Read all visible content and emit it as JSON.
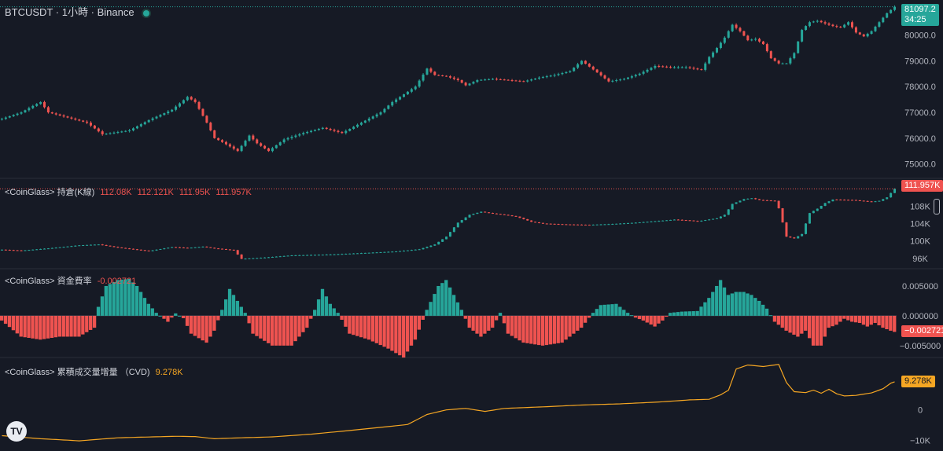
{
  "colors": {
    "background": "#161a25",
    "up": "#26a69a",
    "down": "#ef5350",
    "cvd": "#f5a623",
    "text": "#d1d4dc",
    "divider": "#2a2e39"
  },
  "header": {
    "symbol": "BTCUSDT",
    "separator": "·",
    "interval": "1小時",
    "exchange": "Binance"
  },
  "price_badge": {
    "price": "81097.2",
    "countdown": "34:25"
  },
  "panes": {
    "oi": {
      "title": "<CoinGlass> 持倉(K線)",
      "values": [
        "112.08K",
        "112.121K",
        "111.95K",
        "111.957K"
      ],
      "badge": "111.957K"
    },
    "funding": {
      "title": "<CoinGlass> 資金費率",
      "value": "-0.002721",
      "badge": "−0.002721"
    },
    "cvd": {
      "title": "<CoinGlass> 累積成交量增量 （CVD)",
      "value": "9.278K",
      "badge": "9.278K"
    }
  },
  "logo": "TV",
  "chart_data": [
    {
      "type": "candlestick",
      "pane": "price",
      "ylim": [
        74500,
        81300
      ],
      "yticks": [
        "75000.0",
        "76000.0",
        "77000.0",
        "78000.0",
        "79000.0",
        "80000.0"
      ],
      "ytick_values": [
        75000,
        76000,
        77000,
        78000,
        79000,
        80000
      ],
      "last": 81097.2,
      "anchors": [
        [
          0,
          76750
        ],
        [
          5,
          77000
        ],
        [
          8,
          77250
        ],
        [
          10,
          77400
        ],
        [
          12,
          77000
        ],
        [
          17,
          76800
        ],
        [
          22,
          76600
        ],
        [
          26,
          76150
        ],
        [
          33,
          76300
        ],
        [
          38,
          76700
        ],
        [
          44,
          77100
        ],
        [
          48,
          77600
        ],
        [
          50,
          77400
        ],
        [
          53,
          76600
        ],
        [
          55,
          76000
        ],
        [
          57,
          75850
        ],
        [
          61,
          75500
        ],
        [
          64,
          76100
        ],
        [
          66,
          75800
        ],
        [
          69,
          75500
        ],
        [
          73,
          75950
        ],
        [
          78,
          76200
        ],
        [
          83,
          76400
        ],
        [
          88,
          76200
        ],
        [
          93,
          76600
        ],
        [
          98,
          77000
        ],
        [
          101,
          77400
        ],
        [
          105,
          77800
        ],
        [
          107,
          78000
        ],
        [
          110,
          78700
        ],
        [
          112,
          78450
        ],
        [
          115,
          78400
        ],
        [
          118,
          78250
        ],
        [
          120,
          78050
        ],
        [
          123,
          78250
        ],
        [
          127,
          78300
        ],
        [
          131,
          78250
        ],
        [
          135,
          78200
        ],
        [
          139,
          78350
        ],
        [
          143,
          78450
        ],
        [
          147,
          78600
        ],
        [
          150,
          79000
        ],
        [
          154,
          78550
        ],
        [
          157,
          78200
        ],
        [
          161,
          78300
        ],
        [
          165,
          78500
        ],
        [
          169,
          78800
        ],
        [
          173,
          78750
        ],
        [
          177,
          78750
        ],
        [
          181,
          78650
        ],
        [
          183,
          79150
        ],
        [
          185,
          79500
        ],
        [
          187,
          79900
        ],
        [
          189,
          80400
        ],
        [
          191,
          80150
        ],
        [
          193,
          79800
        ],
        [
          195,
          79850
        ],
        [
          197,
          79650
        ],
        [
          199,
          79100
        ],
        [
          201,
          78900
        ],
        [
          203,
          78900
        ],
        [
          205,
          79300
        ],
        [
          207,
          80200
        ],
        [
          209,
          80500
        ],
        [
          211,
          80550
        ],
        [
          213,
          80450
        ],
        [
          215,
          80350
        ],
        [
          217,
          80300
        ],
        [
          219,
          80500
        ],
        [
          221,
          80100
        ],
        [
          223,
          79950
        ],
        [
          225,
          80150
        ],
        [
          227,
          80500
        ],
        [
          229,
          80850
        ],
        [
          231,
          81100
        ]
      ]
    },
    {
      "type": "candlestick",
      "pane": "open_interest",
      "ylim": [
        94000,
        114000
      ],
      "yticks": [
        "96K",
        "100K",
        "104K",
        "108K"
      ],
      "ytick_values": [
        96000,
        100000,
        104000,
        108000
      ],
      "last": 111957,
      "anchors": [
        [
          0,
          98000
        ],
        [
          5,
          97800
        ],
        [
          12,
          98300
        ],
        [
          20,
          99000
        ],
        [
          25,
          99200
        ],
        [
          30,
          98500
        ],
        [
          38,
          97700
        ],
        [
          44,
          98600
        ],
        [
          48,
          98400
        ],
        [
          52,
          98700
        ],
        [
          55,
          98300
        ],
        [
          60,
          97900
        ],
        [
          62,
          95900
        ],
        [
          68,
          96200
        ],
        [
          75,
          96700
        ],
        [
          85,
          96900
        ],
        [
          95,
          97300
        ],
        [
          102,
          97600
        ],
        [
          108,
          98100
        ],
        [
          112,
          99200
        ],
        [
          115,
          101000
        ],
        [
          118,
          104200
        ],
        [
          121,
          106000
        ],
        [
          124,
          106700
        ],
        [
          127,
          106300
        ],
        [
          130,
          106000
        ],
        [
          133,
          105600
        ],
        [
          137,
          104400
        ],
        [
          140,
          104000
        ],
        [
          146,
          103800
        ],
        [
          152,
          103700
        ],
        [
          158,
          103900
        ],
        [
          164,
          104200
        ],
        [
          170,
          104600
        ],
        [
          174,
          104900
        ],
        [
          178,
          104700
        ],
        [
          180,
          104500
        ],
        [
          182,
          104800
        ],
        [
          185,
          105200
        ],
        [
          187,
          106000
        ],
        [
          189,
          108500
        ],
        [
          192,
          109600
        ],
        [
          194,
          109800
        ],
        [
          196,
          109400
        ],
        [
          198,
          109300
        ],
        [
          200,
          109200
        ],
        [
          201,
          107500
        ],
        [
          203,
          101000
        ],
        [
          205,
          100600
        ],
        [
          207,
          101600
        ],
        [
          209,
          106400
        ],
        [
          211,
          107400
        ],
        [
          213,
          108700
        ],
        [
          215,
          109500
        ],
        [
          220,
          109400
        ],
        [
          225,
          109000
        ],
        [
          227,
          109200
        ],
        [
          229,
          110000
        ],
        [
          231,
          112000
        ]
      ]
    },
    {
      "type": "bar",
      "pane": "funding_rate",
      "ylim": [
        -0.0066,
        0.0075
      ],
      "yticks": [
        "0.005000",
        "0.000000",
        "−0.005000"
      ],
      "ytick_values": [
        0.005,
        0,
        -0.005
      ],
      "last": -0.002721,
      "anchors": [
        [
          0,
          -0.0008
        ],
        [
          5,
          -0.0035
        ],
        [
          10,
          -0.004
        ],
        [
          15,
          -0.0035
        ],
        [
          20,
          -0.0035
        ],
        [
          24,
          -0.002
        ],
        [
          25,
          0.0015
        ],
        [
          27,
          0.005
        ],
        [
          30,
          0.006
        ],
        [
          33,
          0.0062
        ],
        [
          35,
          0.005
        ],
        [
          38,
          0.002
        ],
        [
          40,
          0.0005
        ],
        [
          43,
          -0.001
        ],
        [
          45,
          0.0004
        ],
        [
          47,
          -0.0004
        ],
        [
          49,
          -0.003
        ],
        [
          53,
          -0.0045
        ],
        [
          55,
          -0.0025
        ],
        [
          57,
          0.001
        ],
        [
          59,
          0.0045
        ],
        [
          61,
          0.0025
        ],
        [
          63,
          0.0005
        ],
        [
          65,
          -0.003
        ],
        [
          70,
          -0.005
        ],
        [
          75,
          -0.005
        ],
        [
          79,
          -0.002
        ],
        [
          81,
          0.001
        ],
        [
          83,
          0.0045
        ],
        [
          85,
          0.002
        ],
        [
          87,
          0.0005
        ],
        [
          90,
          -0.003
        ],
        [
          95,
          -0.004
        ],
        [
          100,
          -0.0055
        ],
        [
          104,
          -0.007
        ],
        [
          107,
          -0.004
        ],
        [
          110,
          0.001
        ],
        [
          113,
          0.005
        ],
        [
          115,
          0.006
        ],
        [
          117,
          0.0035
        ],
        [
          119,
          0.001
        ],
        [
          121,
          -0.002
        ],
        [
          124,
          -0.0035
        ],
        [
          127,
          -0.002
        ],
        [
          129,
          0.0005
        ],
        [
          131,
          -0.003
        ],
        [
          135,
          -0.0045
        ],
        [
          140,
          -0.005
        ],
        [
          145,
          -0.0045
        ],
        [
          150,
          -0.002
        ],
        [
          153,
          0.0005
        ],
        [
          155,
          0.0018
        ],
        [
          159,
          0.002
        ],
        [
          162,
          0.0005
        ],
        [
          164,
          -0.0003
        ],
        [
          166,
          -0.0008
        ],
        [
          169,
          -0.0018
        ],
        [
          171,
          -0.0008
        ],
        [
          173,
          0.0005
        ],
        [
          176,
          0.0007
        ],
        [
          180,
          0.0008
        ],
        [
          183,
          0.003
        ],
        [
          186,
          0.006
        ],
        [
          188,
          0.0035
        ],
        [
          190,
          0.004
        ],
        [
          192,
          0.004
        ],
        [
          194,
          0.0035
        ],
        [
          196,
          0.0025
        ],
        [
          198,
          0.0012
        ],
        [
          200,
          -0.001
        ],
        [
          203,
          -0.0025
        ],
        [
          206,
          -0.0035
        ],
        [
          208,
          -0.0025
        ],
        [
          210,
          -0.005
        ],
        [
          212,
          -0.005
        ],
        [
          214,
          -0.002
        ],
        [
          216,
          -0.0015
        ],
        [
          218,
          -0.0005
        ],
        [
          220,
          -0.001
        ],
        [
          222,
          -0.0012
        ],
        [
          224,
          -0.0018
        ],
        [
          226,
          -0.0012
        ],
        [
          228,
          -0.002
        ],
        [
          230,
          -0.0025
        ],
        [
          231,
          -0.0027
        ]
      ]
    },
    {
      "type": "line",
      "pane": "cvd",
      "ylim": [
        -12000,
        16500
      ],
      "yticks": [
        "0",
        "−10K"
      ],
      "ytick_values": [
        0,
        -10000
      ],
      "last": 9278,
      "anchors": [
        [
          0,
          -8500
        ],
        [
          10,
          -9500
        ],
        [
          20,
          -10200
        ],
        [
          25,
          -9700
        ],
        [
          30,
          -9200
        ],
        [
          36,
          -9000
        ],
        [
          45,
          -8700
        ],
        [
          50,
          -8800
        ],
        [
          55,
          -9500
        ],
        [
          62,
          -9200
        ],
        [
          70,
          -8900
        ],
        [
          80,
          -8000
        ],
        [
          90,
          -6800
        ],
        [
          100,
          -5500
        ],
        [
          105,
          -4800
        ],
        [
          110,
          -1500
        ],
        [
          115,
          0
        ],
        [
          120,
          500
        ],
        [
          125,
          -500
        ],
        [
          130,
          500
        ],
        [
          140,
          1000
        ],
        [
          150,
          1600
        ],
        [
          160,
          2000
        ],
        [
          170,
          2600
        ],
        [
          178,
          3300
        ],
        [
          183,
          3500
        ],
        [
          186,
          5000
        ],
        [
          188,
          6500
        ],
        [
          190,
          13500
        ],
        [
          193,
          14800
        ],
        [
          197,
          14300
        ],
        [
          201,
          15000
        ],
        [
          203,
          9000
        ],
        [
          205,
          6000
        ],
        [
          208,
          5700
        ],
        [
          210,
          6500
        ],
        [
          212,
          5500
        ],
        [
          214,
          6800
        ],
        [
          216,
          5300
        ],
        [
          218,
          4600
        ],
        [
          221,
          4800
        ],
        [
          225,
          5600
        ],
        [
          228,
          7000
        ],
        [
          230,
          8800
        ],
        [
          231,
          9278
        ]
      ]
    }
  ]
}
